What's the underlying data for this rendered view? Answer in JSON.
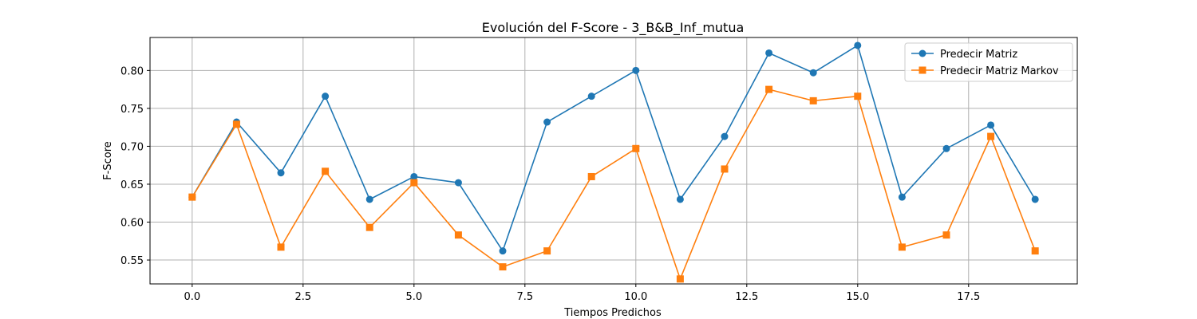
{
  "chart_data": {
    "type": "line",
    "title": "Evolución del F-Score - 3_B&B_Inf_mutua",
    "xlabel": "Tiempos Predichos",
    "ylabel": "F-Score",
    "xlim": [
      -0.95,
      19.95
    ],
    "ylim": [
      0.5185,
      0.8435
    ],
    "xticks": [
      0.0,
      2.5,
      5.0,
      7.5,
      10.0,
      12.5,
      15.0,
      17.5
    ],
    "xtick_labels": [
      "0.0",
      "2.5",
      "5.0",
      "7.5",
      "10.0",
      "12.5",
      "15.0",
      "17.5"
    ],
    "yticks": [
      0.55,
      0.6,
      0.65,
      0.7,
      0.75,
      0.8
    ],
    "ytick_labels": [
      "0.55",
      "0.60",
      "0.65",
      "0.70",
      "0.75",
      "0.80"
    ],
    "grid": true,
    "legend_position": "top-right",
    "x": [
      0,
      1,
      2,
      3,
      4,
      5,
      6,
      7,
      8,
      9,
      10,
      11,
      12,
      13,
      14,
      15,
      16,
      17,
      18,
      19
    ],
    "series": [
      {
        "name": "Predecir Matriz",
        "color": "#1f77b4",
        "marker": "circle",
        "values": [
          0.633,
          0.732,
          0.665,
          0.766,
          0.63,
          0.66,
          0.652,
          0.562,
          0.732,
          0.766,
          0.8,
          0.63,
          0.713,
          0.823,
          0.797,
          0.833,
          0.633,
          0.697,
          0.728,
          0.63
        ]
      },
      {
        "name": "Predecir Matriz Markov",
        "color": "#ff7f0e",
        "marker": "square",
        "values": [
          0.633,
          0.729,
          0.567,
          0.667,
          0.593,
          0.652,
          0.583,
          0.541,
          0.562,
          0.66,
          0.697,
          0.525,
          0.67,
          0.775,
          0.76,
          0.766,
          0.567,
          0.583,
          0.713,
          0.562
        ]
      }
    ]
  }
}
